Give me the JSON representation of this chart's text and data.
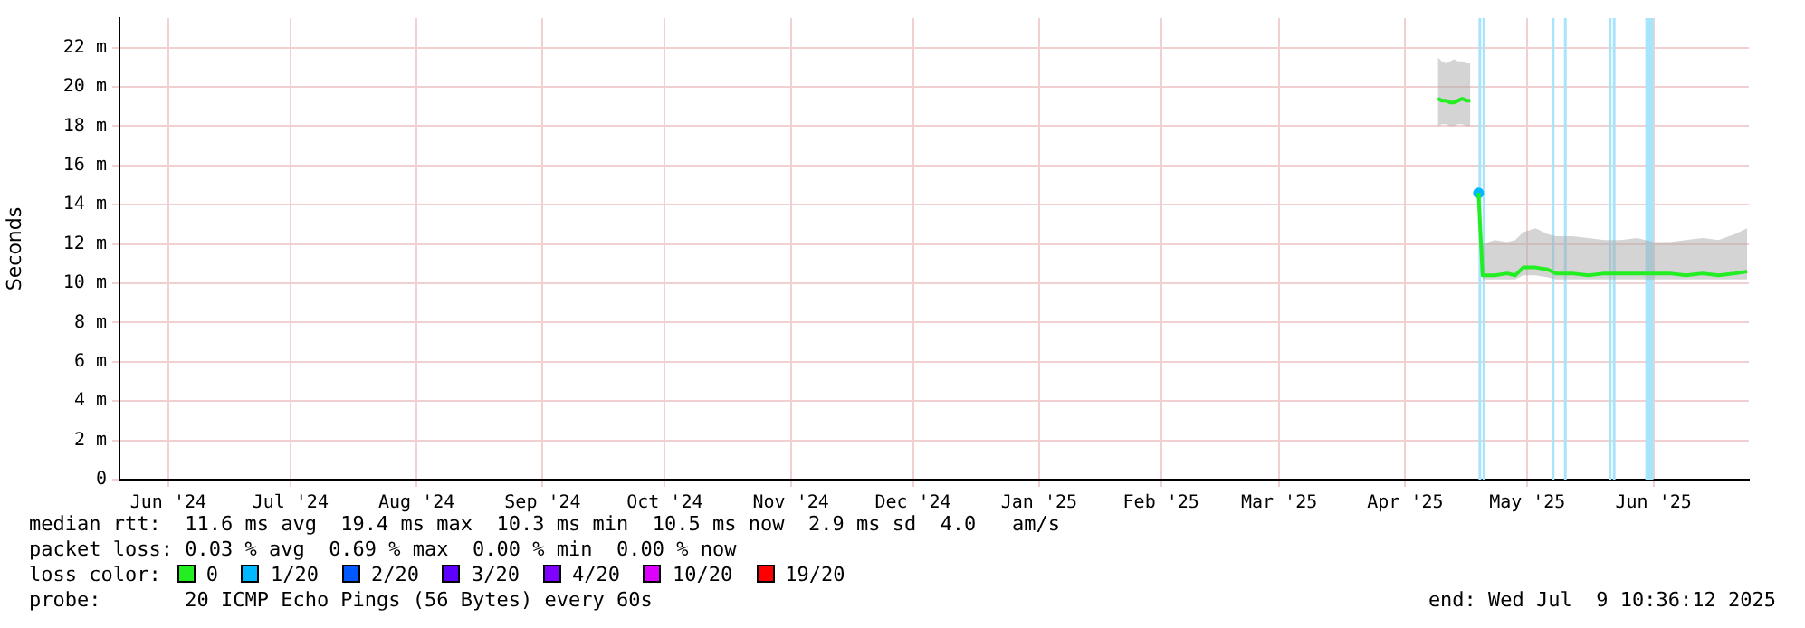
{
  "chart_data": {
    "type": "line",
    "ylabel": "Seconds",
    "legend_title": "loss color:",
    "legend": "bottom",
    "grid": true,
    "marker": "none",
    "line_style": "solid",
    "xlim": [
      "2024-06-04",
      "2025-07-09T10:36"
    ],
    "xticks": [
      {
        "value": "2024-06-16",
        "label": "Jun '24"
      },
      {
        "value": "2024-07-16",
        "label": "Jul '24"
      },
      {
        "value": "2024-08-16",
        "label": "Aug '24"
      },
      {
        "value": "2024-09-16",
        "label": "Sep '24"
      },
      {
        "value": "2024-10-16",
        "label": "Oct '24"
      },
      {
        "value": "2024-11-16",
        "label": "Nov '24"
      },
      {
        "value": "2024-12-16",
        "label": "Dec '24"
      },
      {
        "value": "2025-01-16",
        "label": "Jan '25"
      },
      {
        "value": "2025-02-15",
        "label": "Feb '25"
      },
      {
        "value": "2025-03-16",
        "label": "Mar '25"
      },
      {
        "value": "2025-04-16",
        "label": "Apr '25"
      },
      {
        "value": "2025-05-16",
        "label": "May '25"
      },
      {
        "value": "2025-06-16",
        "label": "Jun '25"
      }
    ],
    "ylim": [
      0,
      23.5
    ],
    "yticks": [
      0,
      {
        "value": 2,
        "label": "2 m"
      },
      {
        "value": 4,
        "label": "4 m"
      },
      {
        "value": 6,
        "label": "6 m"
      },
      {
        "value": 8,
        "label": "8 m"
      },
      {
        "value": 10,
        "label": "10 m"
      },
      {
        "value": 12,
        "label": "12 m"
      },
      {
        "value": 14,
        "label": "14 m"
      },
      {
        "value": 16,
        "label": "16 m"
      },
      {
        "value": 18,
        "label": "18 m"
      },
      {
        "value": 20,
        "label": "20 m"
      },
      {
        "value": 22,
        "label": "22 m"
      }
    ],
    "x": [
      "2025-04-24",
      "2025-04-25",
      "2025-04-26",
      "2025-04-27",
      "2025-04-28",
      "2025-04-29",
      "2025-04-30",
      "2025-05-01",
      "2025-05-02",
      "2025-05-03",
      "2025-05-04",
      "2025-05-05",
      "2025-05-08",
      "2025-05-11",
      "2025-05-13",
      "2025-05-15",
      "2025-05-18",
      "2025-05-21",
      "2025-05-23",
      "2025-05-27",
      "2025-05-31",
      "2025-06-04",
      "2025-06-08",
      "2025-06-12",
      "2025-06-16",
      "2025-06-20",
      "2025-06-24",
      "2025-06-28",
      "2025-07-02",
      "2025-07-06",
      "2025-07-09"
    ],
    "series": [
      {
        "name": "0",
        "color": "#22ee22",
        "values": [
          19.4,
          19.3,
          19.3,
          19.2,
          19.2,
          19.3,
          19.4,
          19.3,
          19.3,
          null,
          14.6,
          10.4,
          10.4,
          10.5,
          10.4,
          10.8,
          10.8,
          10.7,
          10.5,
          10.5,
          10.4,
          10.5,
          10.5,
          10.5,
          10.5,
          10.5,
          10.4,
          10.5,
          10.4,
          10.5,
          10.6
        ],
        "lower": [
          18.0,
          18.1,
          18.1,
          18.0,
          18.0,
          18.1,
          18.1,
          18.0,
          18.0,
          null,
          null,
          10.2,
          10.2,
          10.2,
          10.2,
          10.4,
          10.4,
          10.3,
          10.2,
          10.2,
          10.2,
          10.2,
          10.2,
          10.2,
          10.2,
          10.2,
          10.2,
          10.2,
          10.2,
          10.2,
          10.2
        ],
        "upper": [
          21.5,
          21.3,
          21.2,
          21.3,
          21.4,
          21.3,
          21.3,
          21.2,
          21.2,
          null,
          null,
          12.0,
          12.2,
          12.1,
          12.2,
          12.6,
          12.8,
          12.5,
          12.4,
          12.4,
          12.3,
          12.2,
          12.2,
          12.3,
          12.1,
          12.1,
          12.2,
          12.3,
          12.2,
          12.5,
          12.8
        ]
      },
      {
        "name": "1/20",
        "color": "#00b8ff",
        "type": "scatter",
        "marker": "circle",
        "x": [
          "2025-05-04"
        ],
        "values": [
          14.6
        ]
      },
      {
        "name": "2/20",
        "color": "#0059ff",
        "values": [
          null,
          null,
          null,
          null,
          null,
          null,
          null,
          null,
          null,
          null,
          null,
          null,
          null,
          null,
          null,
          null,
          null,
          null,
          null,
          null,
          null,
          null,
          null,
          null,
          null,
          null,
          null,
          null,
          null,
          null,
          null
        ]
      },
      {
        "name": "3/20",
        "color": "#5e00ff",
        "values": [
          null,
          null,
          null,
          null,
          null,
          null,
          null,
          null,
          null,
          null,
          null,
          null,
          null,
          null,
          null,
          null,
          null,
          null,
          null,
          null,
          null,
          null,
          null,
          null,
          null,
          null,
          null,
          null,
          null,
          null,
          null
        ]
      },
      {
        "name": "4/20",
        "color": "#7e00ff",
        "values": [
          null,
          null,
          null,
          null,
          null,
          null,
          null,
          null,
          null,
          null,
          null,
          null,
          null,
          null,
          null,
          null,
          null,
          null,
          null,
          null,
          null,
          null,
          null,
          null,
          null,
          null,
          null,
          null,
          null,
          null,
          null
        ]
      },
      {
        "name": "10/20",
        "color": "#dd00ff",
        "values": [
          null,
          null,
          null,
          null,
          null,
          null,
          null,
          null,
          null,
          null,
          null,
          null,
          null,
          null,
          null,
          null,
          null,
          null,
          null,
          null,
          null,
          null,
          null,
          null,
          null,
          null,
          null,
          null,
          null,
          null,
          null
        ]
      },
      {
        "name": "19/20",
        "color": "#ff0000",
        "values": [
          null,
          null,
          null,
          null,
          null,
          null,
          null,
          null,
          null,
          null,
          null,
          null,
          null,
          null,
          null,
          null,
          null,
          null,
          null,
          null,
          null,
          null,
          null,
          null,
          null,
          null,
          null,
          null,
          null,
          null,
          null
        ]
      }
    ],
    "bands": [
      {
        "axis": "x",
        "from": "2025-05-04",
        "to": "2025-05-04T12:00",
        "color": "#a8e4fa"
      },
      {
        "axis": "x",
        "from": "2025-05-05",
        "to": "2025-05-05T12:00",
        "color": "#a8e4fa"
      },
      {
        "axis": "x",
        "from": "2025-05-22",
        "to": "2025-05-22T12:00",
        "color": "#a8e4fa"
      },
      {
        "axis": "x",
        "from": "2025-05-25",
        "to": "2025-05-25T12:00",
        "color": "#a8e4fa"
      },
      {
        "axis": "x",
        "from": "2025-06-05",
        "to": "2025-06-05T12:00",
        "color": "#a8e4fa"
      },
      {
        "axis": "x",
        "from": "2025-06-06",
        "to": "2025-06-06T12:00",
        "color": "#a8e4fa"
      },
      {
        "axis": "x",
        "from": "2025-06-14",
        "to": "2025-06-16",
        "color": "#a8e4fa"
      }
    ],
    "annotations": [
      "median rtt:  11.6 ms avg  19.4 ms max  10.3 ms min  10.5 ms now  2.9 ms sd  4.0   am/s",
      "packet loss: 0.03 % avg  0.69 % max  0.00 % min  0.00 % now",
      "probe:       20 ICMP Echo Pings (56 Bytes) every 60s",
      "end: Wed Jul  9 10:36:12 2025"
    ]
  }
}
